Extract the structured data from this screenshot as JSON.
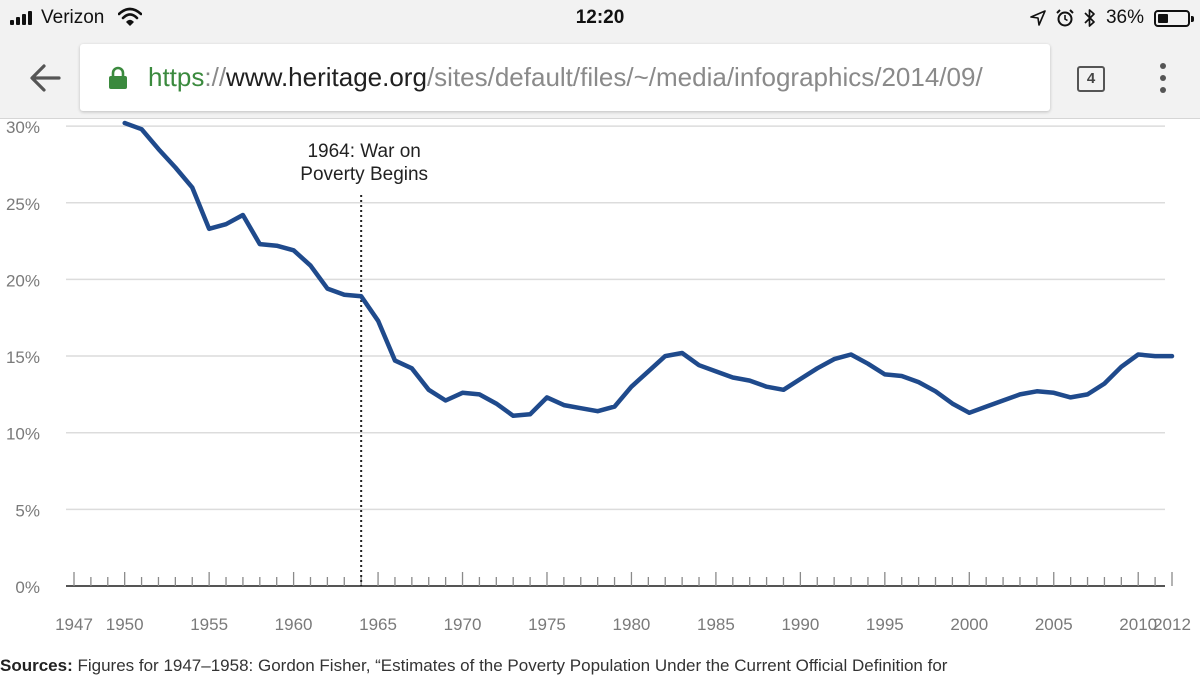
{
  "status_bar": {
    "carrier": "Verizon",
    "time": "12:20",
    "battery_percent": "36%",
    "battery_level": 0.36,
    "icons": [
      "signal-icon",
      "wifi-icon",
      "location-icon",
      "alarm-icon",
      "bluetooth-icon",
      "battery-icon"
    ]
  },
  "browser": {
    "url_scheme": "https",
    "url_separator": "://",
    "url_host": "www.heritage.org",
    "url_path": "/sites/default/files/~/media/infographics/2014/09/",
    "tab_count": "4",
    "icons": [
      "back-arrow-icon",
      "lock-icon",
      "tab-switcher-icon",
      "overflow-menu-icon"
    ],
    "colors": {
      "secure_green": "#3b8a3e",
      "toolbar_bg": "#f2f2f2"
    }
  },
  "chart_data": {
    "type": "line",
    "title": "",
    "xlabel": "",
    "ylabel": "",
    "ytick_labels": [
      "0%",
      "5%",
      "10%",
      "15%",
      "20%",
      "25%",
      "30%"
    ],
    "ylim": [
      0,
      30
    ],
    "xlim": [
      1947,
      2012
    ],
    "xtick_labels": [
      "1947",
      "1950",
      "1955",
      "1960",
      "1965",
      "1970",
      "1975",
      "1980",
      "1985",
      "1990",
      "1995",
      "2000",
      "2005",
      "2010",
      "2012"
    ],
    "xtick_values": [
      1947,
      1950,
      1955,
      1960,
      1965,
      1970,
      1975,
      1980,
      1985,
      1990,
      1995,
      2000,
      2005,
      2010,
      2012
    ],
    "grid": true,
    "line_color": "#1f4a8c",
    "annotation": {
      "x": 1964,
      "lines": [
        "1964: War on",
        "Poverty Begins"
      ],
      "style": "dotted-vertical-line"
    },
    "series": [
      {
        "x": [
          1950,
          1951,
          1952,
          1953,
          1954,
          1955,
          1956,
          1957,
          1958,
          1959,
          1960,
          1961,
          1962,
          1963,
          1964,
          1965,
          1966,
          1967,
          1968,
          1969,
          1970,
          1971,
          1972,
          1973,
          1974,
          1975,
          1976,
          1977,
          1978,
          1979,
          1980,
          1981,
          1982,
          1983,
          1984,
          1985,
          1986,
          1987,
          1988,
          1989,
          1990,
          1991,
          1992,
          1993,
          1994,
          1995,
          1996,
          1997,
          1998,
          1999,
          2000,
          2001,
          2002,
          2003,
          2004,
          2005,
          2006,
          2007,
          2008,
          2009,
          2010,
          2011,
          2012
        ],
        "values": [
          30.2,
          29.8,
          28.5,
          27.3,
          26.0,
          23.3,
          23.6,
          24.2,
          22.3,
          22.2,
          21.9,
          20.9,
          19.4,
          19.0,
          18.9,
          17.3,
          14.7,
          14.2,
          12.8,
          12.1,
          12.6,
          12.5,
          11.9,
          11.1,
          11.2,
          12.3,
          11.8,
          11.6,
          11.4,
          11.7,
          13.0,
          14.0,
          15.0,
          15.2,
          14.4,
          14.0,
          13.6,
          13.4,
          13.0,
          12.8,
          13.5,
          14.2,
          14.8,
          15.1,
          14.5,
          13.8,
          13.7,
          13.3,
          12.7,
          11.9,
          11.3,
          11.7,
          12.1,
          12.5,
          12.7,
          12.6,
          12.3,
          12.5,
          13.2,
          14.3,
          15.1,
          15.0,
          15.0
        ]
      }
    ]
  },
  "footer": {
    "sources_label": "Sources:",
    "sources_text": " Figures for 1947–1958: Gordon Fisher, “Estimates of the Poverty Population Under the Current Official Definition for"
  }
}
